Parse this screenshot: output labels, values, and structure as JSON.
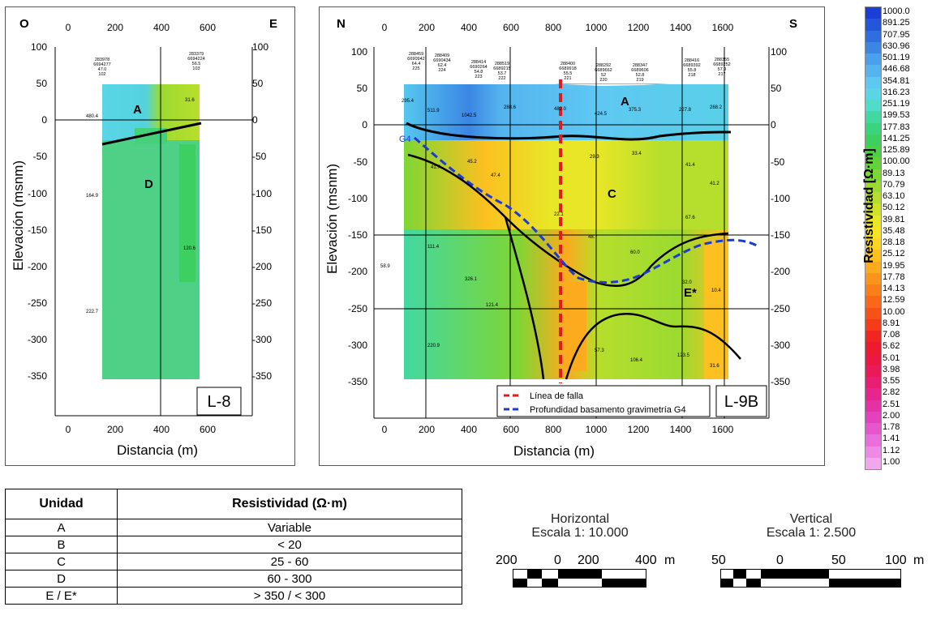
{
  "panel_l8": {
    "corner_left": "O",
    "corner_right": "E",
    "x_ticks": [
      "0",
      "200",
      "400",
      "600"
    ],
    "y_ticks": [
      "100",
      "50",
      "0",
      "-50",
      "-100",
      "-150",
      "-200",
      "-250",
      "-300",
      "-350"
    ],
    "ylabel": "Elevación (msnm)",
    "xlabel": "Distancia (m)",
    "units": [
      "A",
      "D"
    ],
    "line_label": "L-8",
    "station_labels": [
      {
        "lines": [
          "283978",
          "6694277",
          "47.0",
          "102"
        ]
      },
      {
        "lines": [
          "283379",
          "6694224",
          "56.5",
          "103"
        ]
      }
    ],
    "values": [
      "480.4",
      "31.6",
      "164.9",
      "120.6",
      "222.7"
    ]
  },
  "panel_l9b": {
    "corner_left": "N",
    "corner_right": "S",
    "x_ticks": [
      "0",
      "200",
      "400",
      "600",
      "800",
      "1000",
      "1200",
      "1400",
      "1600"
    ],
    "y_ticks": [
      "100",
      "50",
      "0",
      "-50",
      "-100",
      "-150",
      "-200",
      "-250",
      "-300",
      "-350"
    ],
    "ylabel": "Elevación (msnm)",
    "xlabel": "Distancia (m)",
    "units": [
      "A",
      "C",
      "E*"
    ],
    "g4_label": "G4",
    "line_label": "L-9B",
    "legend": [
      "Línea de falla",
      "Profundidad basamento gravimetría G4"
    ],
    "station_labels": [
      {
        "lines": [
          "288459",
          "6690942",
          "64.4",
          "225"
        ]
      },
      {
        "lines": [
          "288409",
          "6690434",
          "62.4",
          "224"
        ]
      },
      {
        "lines": [
          "288414",
          "6690264",
          "54.8",
          "223"
        ]
      },
      {
        "lines": [
          "288519",
          "6689215",
          "53.7",
          "222"
        ]
      },
      {
        "lines": [
          "288400",
          "6689918",
          "55.5",
          "221"
        ]
      },
      {
        "lines": [
          "288292",
          "6689662",
          "52",
          "220"
        ]
      },
      {
        "lines": [
          "288347",
          "6689606",
          "52.8",
          "219"
        ]
      },
      {
        "lines": [
          "288416",
          "6689392",
          "55.8",
          "218"
        ]
      },
      {
        "lines": [
          "288355",
          "6689252",
          "57.9",
          "217"
        ]
      }
    ],
    "values": [
      "295.4",
      "511.9",
      "1042.5",
      "288.6",
      "482.0",
      "424.5",
      "375.3",
      "227.8",
      "268.2",
      "41.7",
      "45.2",
      "47.4",
      "29.3",
      "33.4",
      "41.4",
      "41.2",
      "22.1",
      "67.6",
      "111.4",
      "48.7",
      "60.0",
      "58.9",
      "326.1",
      "32.0",
      "10.4",
      "121.4",
      "220.9",
      "57.3",
      "106.4",
      "123.5",
      "31.6"
    ]
  },
  "colorbar": {
    "title": "Resistividad [Ω·m]",
    "labels": [
      "1000.0",
      "891.25",
      "707.95",
      "630.96",
      "501.19",
      "446.68",
      "354.81",
      "316.23",
      "251.19",
      "199.53",
      "177.83",
      "141.25",
      "125.89",
      "100.00",
      "89.13",
      "70.79",
      "63.10",
      "50.12",
      "39.81",
      "35.48",
      "28.18",
      "25.12",
      "19.95",
      "17.78",
      "14.13",
      "12.59",
      "10.00",
      "8.91",
      "7.08",
      "5.62",
      "5.01",
      "3.98",
      "3.55",
      "2.82",
      "2.51",
      "2.00",
      "1.78",
      "1.41",
      "1.12",
      "1.00"
    ],
    "colors": [
      "#1a3fd6",
      "#2456dc",
      "#2f6ee0",
      "#3b86e4",
      "#4aa0ea",
      "#55b4ee",
      "#5ec8f2",
      "#59d6e6",
      "#4fdcc8",
      "#42d8a2",
      "#3ad47c",
      "#3dd060",
      "#4cd048",
      "#63d238",
      "#7ed634",
      "#9bda30",
      "#b6de2c",
      "#d0e228",
      "#e8e626",
      "#f6e424",
      "#fcd522",
      "#fcc020",
      "#fcaa1e",
      "#fb941c",
      "#fa7e1a",
      "#f86818",
      "#f65218",
      "#f43c1a",
      "#f22620",
      "#ef1a30",
      "#ec1844",
      "#ea1a5a",
      "#e81e72",
      "#e6268c",
      "#e432a4",
      "#e442bc",
      "#e656cf",
      "#ea6edc",
      "#ee8ae6",
      "#f2a6ee"
    ]
  },
  "unit_table": {
    "headers": [
      "Unidad",
      "Resistividad (Ω·m)"
    ],
    "rows": [
      [
        "A",
        "Variable"
      ],
      [
        "B",
        "< 20"
      ],
      [
        "C",
        "25 - 60"
      ],
      [
        "D",
        "60 - 300"
      ],
      [
        "E / E*",
        "> 350 / < 300"
      ]
    ]
  },
  "scale_horizontal": {
    "title": "Horizontal",
    "subtitle": "Escala 1: 10.000",
    "labels": [
      "200",
      "0",
      "200",
      "400",
      "m"
    ]
  },
  "scale_vertical": {
    "title": "Vertical",
    "subtitle": "Escala 1: 2.500",
    "labels": [
      "50",
      "0",
      "50",
      "100",
      "m"
    ]
  }
}
